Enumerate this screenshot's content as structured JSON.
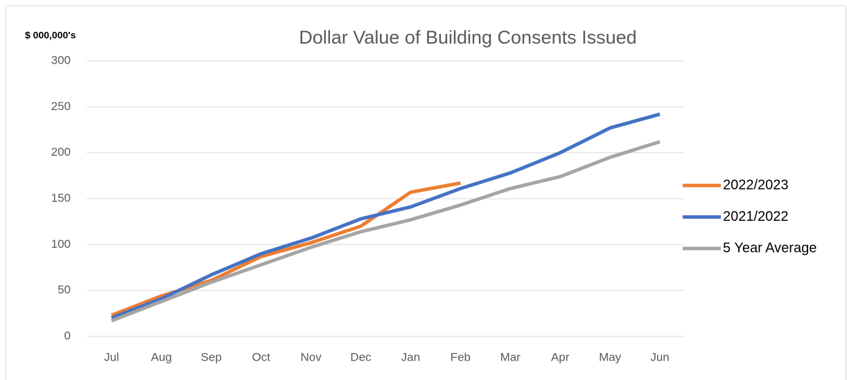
{
  "chart_data": {
    "type": "line",
    "title": "Dollar Value of Building Consents Issued",
    "y_label": "$ 000,000's",
    "categories": [
      "Jul",
      "Aug",
      "Sep",
      "Oct",
      "Nov",
      "Dec",
      "Jan",
      "Feb",
      "Mar",
      "Apr",
      "May",
      "Jun"
    ],
    "series": [
      {
        "name": "2022/2023",
        "color": "#ed7d31",
        "values": [
          23,
          44,
          61,
          87,
          102,
          120,
          157,
          167,
          null,
          null,
          null,
          null
        ]
      },
      {
        "name": "2021/2022",
        "color": "#4472c4",
        "values": [
          20,
          41,
          67,
          90,
          107,
          128,
          141,
          161,
          178,
          200,
          227,
          242
        ]
      },
      {
        "name": "5 Year Average",
        "color": "#a5a5a5",
        "values": [
          17,
          38,
          59,
          78,
          97,
          114,
          127,
          143,
          161,
          174,
          195,
          212
        ]
      }
    ],
    "ylim": [
      0,
      300
    ],
    "yticks": [
      0,
      50,
      100,
      150,
      200,
      250,
      300
    ],
    "grid": true,
    "legend": "right"
  }
}
